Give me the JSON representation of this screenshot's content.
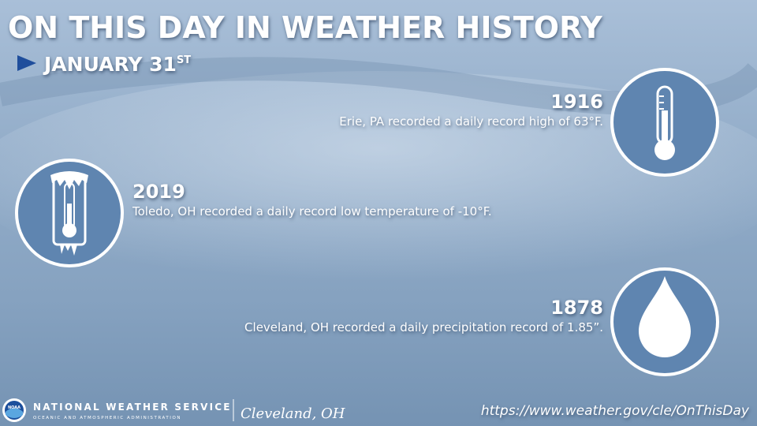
{
  "header": {
    "title": "ON THIS DAY IN WEATHER HISTORY",
    "date": "JANUARY 31",
    "date_suffix": "ST"
  },
  "events": [
    {
      "year": "1916",
      "text": "Erie, PA recorded a daily record high of 63°F."
    },
    {
      "year": "2019",
      "text": "Toledo, OH recorded a daily record low temperature of -10°F."
    },
    {
      "year": "1878",
      "text": "Cleveland, OH recorded a daily precipitation record of 1.85”."
    }
  ],
  "footer": {
    "logo": "NOAA",
    "agency": "NATIONAL WEATHER SERVICE",
    "subagency": "OCEANIC AND ATMOSPHERIC ADMINISTRATION",
    "office": "Cleveland, OH",
    "url": "https://www.weather.gov/cle/OnThisDay"
  }
}
